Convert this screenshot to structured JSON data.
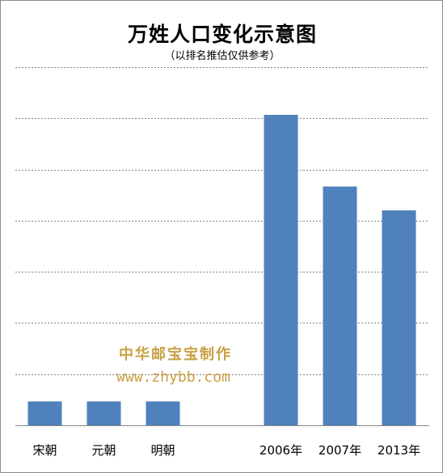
{
  "chart_data": {
    "type": "bar",
    "title": "万姓人口变化示意图",
    "subtitle": "（以排名推估仅供参考）",
    "categories": [
      "宋朝",
      "元朝",
      "明朝",
      "",
      "2006年",
      "2007年",
      "2013年"
    ],
    "values": [
      0.5,
      0.5,
      0.5,
      null,
      6.5,
      5.0,
      4.5
    ],
    "ylim": [
      0,
      7.5
    ],
    "grid": true,
    "gridline_count": 7,
    "bar_color": "#4f81bd",
    "grid_color": "#808080"
  },
  "watermark": {
    "line1": "中华邮宝宝制作",
    "line2": "www.zhybb.com",
    "color": "#c79a3a"
  }
}
